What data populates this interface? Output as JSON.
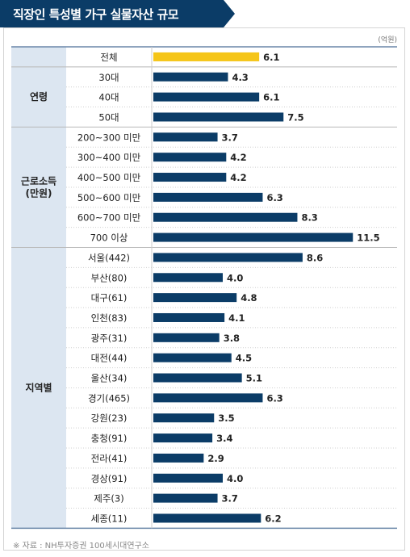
{
  "title": "직장인 특성별 가구 실물자산 규모",
  "unit": "(억원)",
  "source": "※ 자료 : NH투자증권 100세시대연구소",
  "colors": {
    "banner": "#0b3c67",
    "bar": "#0b3c67",
    "highlight": "#f5c518",
    "group_bg": "#dce6f1"
  },
  "chart_data": {
    "type": "bar",
    "orientation": "horizontal",
    "xlim": [
      0,
      12
    ],
    "groups": [
      {
        "label": "",
        "rows": [
          {
            "label": "전체",
            "value": 6.1,
            "value_label": "6.1",
            "highlight": true
          }
        ]
      },
      {
        "label": "연령",
        "rows": [
          {
            "label": "30대",
            "value": 4.3,
            "value_label": "4.3"
          },
          {
            "label": "40대",
            "value": 6.1,
            "value_label": "6.1"
          },
          {
            "label": "50대",
            "value": 7.5,
            "value_label": "7.5"
          }
        ]
      },
      {
        "label": "근로소득\n(만원)",
        "rows": [
          {
            "label": "200~300 미만",
            "value": 3.7,
            "value_label": "3.7"
          },
          {
            "label": "300~400 미만",
            "value": 4.2,
            "value_label": "4.2"
          },
          {
            "label": "400~500 미만",
            "value": 4.2,
            "value_label": "4.2"
          },
          {
            "label": "500~600 미만",
            "value": 6.3,
            "value_label": "6.3"
          },
          {
            "label": "600~700 미만",
            "value": 8.3,
            "value_label": "8.3"
          },
          {
            "label": "700 이상",
            "value": 11.5,
            "value_label": "11.5"
          }
        ]
      },
      {
        "label": "지역별",
        "rows": [
          {
            "label": "서울(442)",
            "value": 8.6,
            "value_label": "8.6"
          },
          {
            "label": "부산(80)",
            "value": 4.0,
            "value_label": "4.0"
          },
          {
            "label": "대구(61)",
            "value": 4.8,
            "value_label": "4.8"
          },
          {
            "label": "인천(83)",
            "value": 4.1,
            "value_label": "4.1"
          },
          {
            "label": "광주(31)",
            "value": 3.8,
            "value_label": "3.8"
          },
          {
            "label": "대전(44)",
            "value": 4.5,
            "value_label": "4.5"
          },
          {
            "label": "울산(34)",
            "value": 5.1,
            "value_label": "5.1"
          },
          {
            "label": "경기(465)",
            "value": 6.3,
            "value_label": "6.3"
          },
          {
            "label": "강원(23)",
            "value": 3.5,
            "value_label": "3.5"
          },
          {
            "label": "충청(91)",
            "value": 3.4,
            "value_label": "3.4"
          },
          {
            "label": "전라(41)",
            "value": 2.9,
            "value_label": "2.9"
          },
          {
            "label": "경상(91)",
            "value": 4.0,
            "value_label": "4.0"
          },
          {
            "label": "제주(3)",
            "value": 3.7,
            "value_label": "3.7"
          },
          {
            "label": "세종(11)",
            "value": 6.2,
            "value_label": "6.2"
          }
        ]
      }
    ]
  }
}
